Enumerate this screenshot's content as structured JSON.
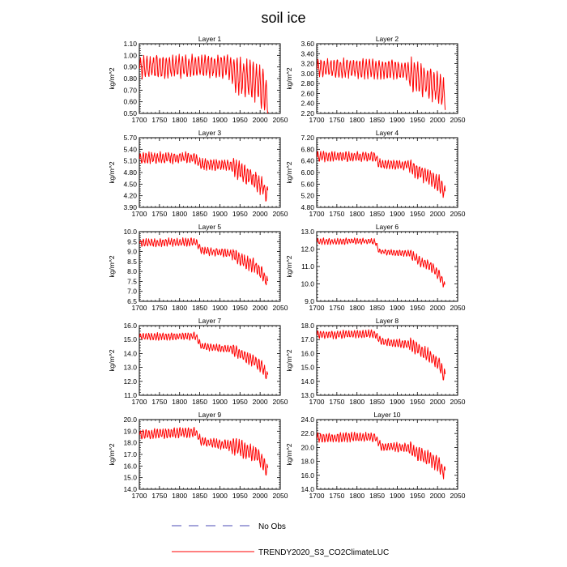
{
  "title": "soil ice",
  "legend": [
    {
      "label": "No Obs",
      "style": "dashed",
      "color": "#4b4bb4"
    },
    {
      "label": "TRENDY2020_S3_CO2ClimateLUC",
      "style": "solid",
      "color": "#ff0000"
    }
  ],
  "line_color": "#ff0000",
  "chart_data": [
    {
      "type": "line",
      "title": "Layer 1",
      "ylabel": "kg/m^2",
      "xlim": [
        1700,
        2050
      ],
      "xticks": [
        "1700",
        "1750",
        "1800",
        "1850",
        "1900",
        "1950",
        "2000",
        "2050"
      ],
      "ylim": [
        0.5,
        1.1
      ],
      "yticks": [
        "0.50",
        "0.60",
        "0.70",
        "0.80",
        "0.90",
        "1.00",
        "1.10"
      ],
      "series": [
        {
          "name": "TRENDY2020_S3_CO2ClimateLUC",
          "start_year": 1701,
          "end_year": 2019,
          "base": 0.9,
          "amp": 0.085,
          "period": 8,
          "noise": 0.025,
          "seed": 11,
          "trend": [
            [
              1701,
              0.9
            ],
            [
              1920,
              0.91
            ],
            [
              1935,
              0.84
            ],
            [
              1960,
              0.8
            ],
            [
              1990,
              0.77
            ],
            [
              2005,
              0.72
            ],
            [
              2019,
              0.64
            ]
          ]
        }
      ]
    },
    {
      "type": "line",
      "title": "Layer 2",
      "ylabel": "kg/m^2",
      "xlim": [
        1700,
        2050
      ],
      "xticks": [
        "1700",
        "1750",
        "1800",
        "1850",
        "1900",
        "1950",
        "2000",
        "2050"
      ],
      "ylim": [
        2.2,
        3.6
      ],
      "yticks": [
        "2.20",
        "2.40",
        "2.60",
        "2.80",
        "3.00",
        "3.20",
        "3.40",
        "3.60"
      ],
      "series": [
        {
          "name": "TRENDY2020_S3_CO2ClimateLUC",
          "start_year": 1701,
          "end_year": 2019,
          "base": 3.1,
          "amp": 0.16,
          "period": 8,
          "noise": 0.05,
          "seed": 23,
          "trend": [
            [
              1701,
              3.12
            ],
            [
              1920,
              3.08
            ],
            [
              1940,
              2.95
            ],
            [
              1970,
              2.85
            ],
            [
              2000,
              2.72
            ],
            [
              2019,
              2.55
            ]
          ]
        }
      ]
    },
    {
      "type": "line",
      "title": "Layer 3",
      "ylabel": "kg/m^2",
      "xlim": [
        1700,
        2050
      ],
      "xticks": [
        "1700",
        "1750",
        "1800",
        "1850",
        "1900",
        "1950",
        "2000",
        "2050"
      ],
      "ylim": [
        3.9,
        5.7
      ],
      "yticks": [
        "3.90",
        "4.20",
        "4.50",
        "4.80",
        "5.10",
        "5.40",
        "5.70"
      ],
      "series": [
        {
          "name": "TRENDY2020_S3_CO2ClimateLUC",
          "start_year": 1701,
          "end_year": 2019,
          "base": 5.18,
          "amp": 0.12,
          "period": 7,
          "noise": 0.05,
          "seed": 37,
          "trend": [
            [
              1701,
              5.18
            ],
            [
              1840,
              5.18
            ],
            [
              1850,
              5.02
            ],
            [
              1930,
              4.98
            ],
            [
              1950,
              4.85
            ],
            [
              1980,
              4.65
            ],
            [
              2005,
              4.45
            ],
            [
              2019,
              4.2
            ]
          ]
        }
      ]
    },
    {
      "type": "line",
      "title": "Layer 4",
      "ylabel": "kg/m^2",
      "xlim": [
        1700,
        2050
      ],
      "xticks": [
        "1700",
        "1750",
        "1800",
        "1850",
        "1900",
        "1950",
        "2000",
        "2050"
      ],
      "ylim": [
        4.8,
        7.2
      ],
      "yticks": [
        "4.80",
        "5.20",
        "5.60",
        "6.00",
        "6.40",
        "6.80",
        "7.20"
      ],
      "series": [
        {
          "name": "TRENDY2020_S3_CO2ClimateLUC",
          "start_year": 1701,
          "end_year": 2019,
          "base": 6.55,
          "amp": 0.14,
          "period": 7,
          "noise": 0.05,
          "seed": 41,
          "trend": [
            [
              1701,
              6.55
            ],
            [
              1845,
              6.55
            ],
            [
              1855,
              6.3
            ],
            [
              1930,
              6.25
            ],
            [
              1950,
              6.05
            ],
            [
              1980,
              5.85
            ],
            [
              2005,
              5.6
            ],
            [
              2019,
              5.25
            ]
          ]
        }
      ]
    },
    {
      "type": "line",
      "title": "Layer 5",
      "ylabel": "kg/m^2",
      "xlim": [
        1700,
        2050
      ],
      "xticks": [
        "1700",
        "1750",
        "1800",
        "1850",
        "1900",
        "1950",
        "2000",
        "2050"
      ],
      "ylim": [
        6.5,
        10.0
      ],
      "yticks": [
        "6.5",
        "7.0",
        "7.5",
        "8.0",
        "8.5",
        "9.0",
        "9.5",
        "10.0"
      ],
      "series": [
        {
          "name": "TRENDY2020_S3_CO2ClimateLUC",
          "start_year": 1701,
          "end_year": 2019,
          "base": 9.45,
          "amp": 0.16,
          "period": 7,
          "noise": 0.07,
          "seed": 53,
          "trend": [
            [
              1701,
              9.45
            ],
            [
              1840,
              9.48
            ],
            [
              1855,
              9.05
            ],
            [
              1930,
              8.9
            ],
            [
              1955,
              8.55
            ],
            [
              1985,
              8.3
            ],
            [
              2005,
              7.9
            ],
            [
              2019,
              7.4
            ]
          ]
        }
      ]
    },
    {
      "type": "line",
      "title": "Layer 6",
      "ylabel": "kg/m^2",
      "xlim": [
        1700,
        2050
      ],
      "xticks": [
        "1700",
        "1750",
        "1800",
        "1850",
        "1900",
        "1950",
        "2000",
        "2050"
      ],
      "ylim": [
        9.0,
        13.0
      ],
      "yticks": [
        "9.0",
        "10.0",
        "11.0",
        "12.0",
        "13.0"
      ],
      "series": [
        {
          "name": "TRENDY2020_S3_CO2ClimateLUC",
          "start_year": 1701,
          "end_year": 2019,
          "base": 12.45,
          "amp": 0.14,
          "period": 7,
          "noise": 0.06,
          "seed": 67,
          "trend": [
            [
              1701,
              12.45
            ],
            [
              1845,
              12.45
            ],
            [
              1855,
              11.85
            ],
            [
              1930,
              11.75
            ],
            [
              1955,
              11.3
            ],
            [
              1985,
              11.0
            ],
            [
              2005,
              10.5
            ],
            [
              2019,
              9.8
            ]
          ]
        }
      ]
    },
    {
      "type": "line",
      "title": "Layer 7",
      "ylabel": "kg/m^2",
      "xlim": [
        1700,
        2050
      ],
      "xticks": [
        "1700",
        "1750",
        "1800",
        "1850",
        "1900",
        "1950",
        "2000",
        "2050"
      ],
      "ylim": [
        11.0,
        16.0
      ],
      "yticks": [
        "11.0",
        "12.0",
        "13.0",
        "14.0",
        "15.0",
        "16.0"
      ],
      "series": [
        {
          "name": "TRENDY2020_S3_CO2ClimateLUC",
          "start_year": 1701,
          "end_year": 2019,
          "base": 15.2,
          "amp": 0.22,
          "period": 7,
          "noise": 0.08,
          "seed": 71,
          "trend": [
            [
              1701,
              15.2
            ],
            [
              1840,
              15.25
            ],
            [
              1855,
              14.5
            ],
            [
              1930,
              14.3
            ],
            [
              1955,
              13.9
            ],
            [
              1985,
              13.5
            ],
            [
              2005,
              13.0
            ],
            [
              2019,
              12.3
            ]
          ]
        }
      ]
    },
    {
      "type": "line",
      "title": "Layer 8",
      "ylabel": "kg/m^2",
      "xlim": [
        1700,
        2050
      ],
      "xticks": [
        "1700",
        "1750",
        "1800",
        "1850",
        "1900",
        "1950",
        "2000",
        "2050"
      ],
      "ylim": [
        13.0,
        18.0
      ],
      "yticks": [
        "13.0",
        "14.0",
        "15.0",
        "16.0",
        "17.0",
        "18.0"
      ],
      "series": [
        {
          "name": "TRENDY2020_S3_CO2ClimateLUC",
          "start_year": 1701,
          "end_year": 2019,
          "base": 17.35,
          "amp": 0.25,
          "period": 7,
          "noise": 0.08,
          "seed": 83,
          "trend": [
            [
              1701,
              17.35
            ],
            [
              1845,
              17.4
            ],
            [
              1860,
              16.85
            ],
            [
              1935,
              16.65
            ],
            [
              1960,
              16.2
            ],
            [
              1990,
              15.6
            ],
            [
              2005,
              15.2
            ],
            [
              2019,
              14.3
            ]
          ]
        }
      ]
    },
    {
      "type": "line",
      "title": "Layer 9",
      "ylabel": "kg/m^2",
      "xlim": [
        1700,
        2050
      ],
      "xticks": [
        "1700",
        "1750",
        "1800",
        "1850",
        "1900",
        "1950",
        "2000",
        "2050"
      ],
      "ylim": [
        14.0,
        20.0
      ],
      "yticks": [
        "14.0",
        "15.0",
        "16.0",
        "17.0",
        "18.0",
        "19.0",
        "20.0"
      ],
      "series": [
        {
          "name": "TRENDY2020_S3_CO2ClimateLUC",
          "start_year": 1701,
          "end_year": 2019,
          "base": 18.8,
          "amp": 0.35,
          "period": 7,
          "noise": 0.12,
          "seed": 97,
          "trend": [
            [
              1701,
              18.75
            ],
            [
              1840,
              18.9
            ],
            [
              1855,
              18.1
            ],
            [
              1935,
              17.7
            ],
            [
              1960,
              17.4
            ],
            [
              1990,
              17.0
            ],
            [
              2005,
              16.4
            ],
            [
              2019,
              15.4
            ]
          ]
        }
      ]
    },
    {
      "type": "line",
      "title": "Layer 10",
      "ylabel": "kg/m^2",
      "xlim": [
        1700,
        2050
      ],
      "xticks": [
        "1700",
        "1750",
        "1800",
        "1850",
        "1900",
        "1950",
        "2000",
        "2050"
      ],
      "ylim": [
        14.0,
        24.0
      ],
      "yticks": [
        "14.0",
        "16.0",
        "18.0",
        "20.0",
        "22.0",
        "24.0"
      ],
      "series": [
        {
          "name": "TRENDY2020_S3_CO2ClimateLUC",
          "start_year": 1701,
          "end_year": 2019,
          "base": 21.4,
          "amp": 0.55,
          "period": 7,
          "noise": 0.2,
          "seed": 101,
          "trend": [
            [
              1701,
              21.4
            ],
            [
              1845,
              21.5
            ],
            [
              1860,
              20.1
            ],
            [
              1925,
              20.0
            ],
            [
              1950,
              19.2
            ],
            [
              1980,
              18.4
            ],
            [
              2000,
              17.8
            ],
            [
              2019,
              16.2
            ]
          ]
        }
      ]
    }
  ]
}
